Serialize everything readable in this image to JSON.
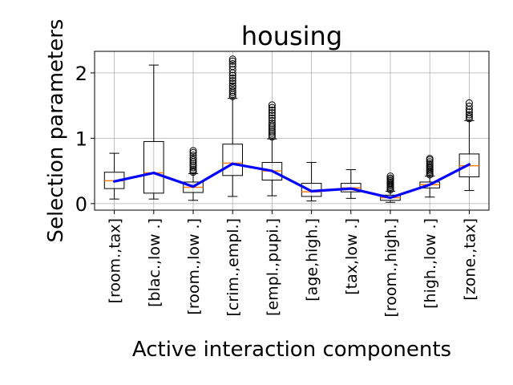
{
  "chart_data": {
    "type": "box",
    "title": "housing",
    "xlabel": "Active interaction components",
    "ylabel": "Selection parameters",
    "ylim": [
      -0.1,
      2.33
    ],
    "yticks": [
      0,
      1,
      2
    ],
    "grid": true,
    "categories": [
      "[room.,tax]",
      "[blac.,low .]",
      "[room.,low .]",
      "[crim.,empl.]",
      "[empl.,pupi.]",
      "[age,high.]",
      "[tax,low .]",
      "[room.,high.]",
      "[high.,low .]",
      "[zone.,tax]"
    ],
    "boxes": [
      {
        "whisker_low": 0.07,
        "q1": 0.23,
        "median": 0.35,
        "q3": 0.48,
        "whisker_high": 0.77,
        "outliers": []
      },
      {
        "whisker_low": 0.07,
        "q1": 0.16,
        "median": 0.47,
        "q3": 0.95,
        "whisker_high": 2.12,
        "outliers": []
      },
      {
        "whisker_low": 0.05,
        "q1": 0.17,
        "median": 0.25,
        "q3": 0.33,
        "whisker_high": 0.46,
        "outliers": [
          0.48,
          0.5,
          0.52,
          0.55,
          0.58,
          0.61,
          0.64,
          0.67,
          0.7,
          0.74,
          0.78,
          0.81
        ]
      },
      {
        "whisker_low": 0.11,
        "q1": 0.43,
        "median": 0.62,
        "q3": 0.91,
        "whisker_high": 1.61,
        "outliers": [
          1.64,
          1.67,
          1.7,
          1.73,
          1.77,
          1.8,
          1.84,
          1.88,
          1.92,
          1.96,
          2.0,
          2.05,
          2.1,
          2.14,
          2.18,
          2.21
        ]
      },
      {
        "whisker_low": 0.12,
        "q1": 0.36,
        "median": 0.5,
        "q3": 0.63,
        "whisker_high": 0.99,
        "outliers": [
          1.02,
          1.05,
          1.08,
          1.11,
          1.14,
          1.17,
          1.2,
          1.23,
          1.27,
          1.31,
          1.35,
          1.39,
          1.43,
          1.47,
          1.51
        ]
      },
      {
        "whisker_low": 0.04,
        "q1": 0.11,
        "median": 0.18,
        "q3": 0.31,
        "whisker_high": 0.63,
        "outliers": []
      },
      {
        "whisker_low": 0.08,
        "q1": 0.18,
        "median": 0.24,
        "q3": 0.31,
        "whisker_high": 0.52,
        "outliers": []
      },
      {
        "whisker_low": 0.02,
        "q1": 0.05,
        "median": 0.09,
        "q3": 0.13,
        "whisker_high": 0.19,
        "outliers": [
          0.21,
          0.23,
          0.25,
          0.27,
          0.29,
          0.31,
          0.33,
          0.35,
          0.37,
          0.39,
          0.42
        ]
      },
      {
        "whisker_low": 0.1,
        "q1": 0.24,
        "median": 0.29,
        "q3": 0.33,
        "whisker_high": 0.42,
        "outliers": [
          0.44,
          0.46,
          0.48,
          0.5,
          0.52,
          0.54,
          0.56,
          0.58,
          0.61,
          0.64,
          0.67,
          0.69
        ]
      },
      {
        "whisker_low": 0.2,
        "q1": 0.41,
        "median": 0.58,
        "q3": 0.76,
        "whisker_high": 1.27,
        "outliers": [
          1.3,
          1.33,
          1.36,
          1.4,
          1.44,
          1.49,
          1.54
        ]
      }
    ],
    "mean_line": {
      "values": [
        0.34,
        0.47,
        0.26,
        0.61,
        0.5,
        0.19,
        0.23,
        0.09,
        0.29,
        0.6
      ],
      "color": "#0000ff"
    },
    "colors": {
      "box": "#000000",
      "median": "#ff7f0e",
      "outlier": "#000000",
      "grid": "#b0b0b0",
      "mean_line": "#0000ff"
    }
  }
}
